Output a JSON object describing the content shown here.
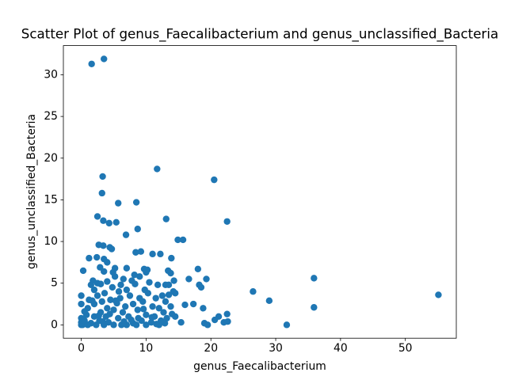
{
  "chart_data": {
    "type": "scatter",
    "title": "Scatter Plot of genus_Faecalibacterium and genus_unclassified_Bacteria",
    "xlabel": "genus_Faecalibacterium",
    "ylabel": "genus_unclassified_Bacteria",
    "color": "#1f77b4",
    "xlim": [
      -2.76,
      57.86
    ],
    "ylim": [
      -1.6,
      33.5
    ],
    "xticks": [
      0,
      10,
      20,
      30,
      40,
      50
    ],
    "yticks": [
      0,
      5,
      10,
      15,
      20,
      25,
      30
    ],
    "x": [
      1.6,
      3.5,
      3.3,
      11.7,
      20.5,
      3.2,
      5.7,
      8.5,
      2.5,
      3.4,
      5.4,
      4.3,
      13.1,
      22.5,
      8.7,
      6.9,
      14.9,
      15.7,
      2.7,
      3.4,
      4.4,
      4.7,
      8.4,
      9.2,
      11.0,
      12.2,
      1.2,
      2.4,
      3.5,
      4.0,
      13.9,
      0.3,
      2.9,
      3.5,
      5.2,
      7.0,
      9.7,
      10.0,
      13.4,
      13.8,
      18.0,
      26.5,
      29.0,
      35.9,
      35.9,
      55.1,
      31.7,
      16.6,
      19.3,
      18.2,
      18.5,
      16.0,
      17.3,
      18.8,
      19.0,
      19.5,
      20.6,
      21.2,
      22.0,
      22.6,
      22.5,
      15.4,
      14.5,
      14.5,
      14.3,
      13.0,
      13.5,
      0.0,
      0.0,
      0,
      0,
      0,
      0.2,
      0.5,
      0.8,
      1,
      1,
      1.2,
      1.5,
      1.5,
      1.8,
      2,
      2,
      2,
      2.3,
      2.5,
      2.5,
      2.8,
      3,
      3,
      3.2,
      3.5,
      3.6,
      3.8,
      4,
      4,
      4.2,
      4.5,
      4.8,
      5,
      5,
      5.2,
      5.5,
      5.7,
      5.8,
      6,
      6.2,
      6.4,
      6.5,
      6.8,
      7,
      7,
      7.3,
      7.5,
      7.8,
      8,
      8,
      8.3,
      8.5,
      8.7,
      9,
      9,
      9.3,
      9.5,
      9.8,
      10,
      10,
      10.3,
      10.5,
      10.8,
      11,
      11.3,
      11.5,
      11.8,
      12,
      12,
      12.3,
      12.5,
      12.7,
      13,
      13.2,
      13.5,
      13.8,
      14,
      14.2,
      0.5,
      1.7,
      2.7,
      3.3,
      4.4,
      5.3,
      6.6,
      7.7,
      8.8,
      9.6,
      10.9,
      11.6,
      12.9,
      4.9,
      6.1,
      8.2,
      10.2
    ],
    "values": [
      31.3,
      31.9,
      17.8,
      18.7,
      17.4,
      15.8,
      14.6,
      14.7,
      13.0,
      12.5,
      12.3,
      12.2,
      12.7,
      12.4,
      11.5,
      10.8,
      10.2,
      10.2,
      9.6,
      9.5,
      9.3,
      9.1,
      8.7,
      8.8,
      8.5,
      8.5,
      8.0,
      8.1,
      7.9,
      7.5,
      8.0,
      6.5,
      6.9,
      6.4,
      6.8,
      6.8,
      6.7,
      6.3,
      6.5,
      6.2,
      6.7,
      4.0,
      2.9,
      5.6,
      2.1,
      3.6,
      0.0,
      5.5,
      5.5,
      4.8,
      4.5,
      2.4,
      2.5,
      2.0,
      0.2,
      0.0,
      0.6,
      1.0,
      0.3,
      0.4,
      1.3,
      0.3,
      1.0,
      3.8,
      5.3,
      4.8,
      4.8,
      3.5,
      2.5,
      0,
      0.3,
      0.8,
      0,
      0.5,
      1.2,
      0,
      2,
      3,
      0.2,
      4.8,
      5.3,
      1,
      2.5,
      4.2,
      0,
      3.5,
      5,
      0.5,
      1.5,
      4.9,
      2.8,
      0,
      3.8,
      1,
      2,
      5.2,
      0.3,
      3,
      4.5,
      0,
      1.8,
      5.8,
      2.6,
      0.8,
      4,
      3.2,
      0,
      1.5,
      5.5,
      2.2,
      0,
      4.2,
      1,
      3.5,
      5.3,
      0.2,
      2.5,
      4.9,
      0,
      1.8,
      3.2,
      5.8,
      0.5,
      2.8,
      4.2,
      0,
      1.2,
      3.8,
      5.1,
      0.3,
      2.2,
      1,
      3.2,
      4.8,
      0,
      2,
      0.5,
      3.5,
      1.5,
      2.8,
      0.8,
      3.6,
      2.2,
      1.3,
      4,
      1.6,
      2.9,
      1.1,
      0.4,
      1.3,
      2.9,
      0.4,
      0.6,
      0.8,
      1.9,
      0.9,
      0.1,
      0.2,
      6.3,
      4.8,
      6.0,
      6.6
    ]
  }
}
